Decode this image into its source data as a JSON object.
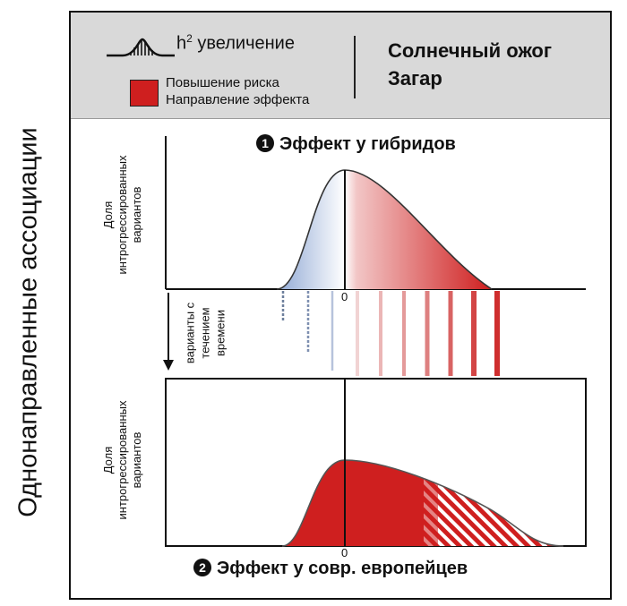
{
  "figure": {
    "side_title": "Однонаправленные ассоциации"
  },
  "legend": {
    "h2_prefix": "h",
    "h2_sup": "2",
    "h2_text": " увеличение",
    "risk_line1": "Повышение риска",
    "risk_line2": "Направление эффекта",
    "risk_color": "#cf1f1f"
  },
  "trait": {
    "line1": "Солнечный ожог",
    "line2": "Загар"
  },
  "panel_hybrids": {
    "number": "1",
    "title": "Эффект у гибридов",
    "ylabel_line1": "Доля",
    "ylabel_line2": "интрогрессированных",
    "ylabel_line3": "вариантов",
    "zero_tick": "0"
  },
  "variants_over_time": {
    "line1": "варианты с",
    "line2": "течением",
    "line3": "времени"
  },
  "panel_europeans": {
    "number": "2",
    "title": "Эффект у совр. европейцев",
    "ylabel_line1": "Доля",
    "ylabel_line2": "интрогрессированных",
    "ylabel_line3": "вариантов",
    "zero_tick": "0"
  },
  "colors": {
    "risk_red": "#cf1f1f",
    "protective_blue": "#8fa8d4",
    "legend_band": "#d9d9d9"
  }
}
